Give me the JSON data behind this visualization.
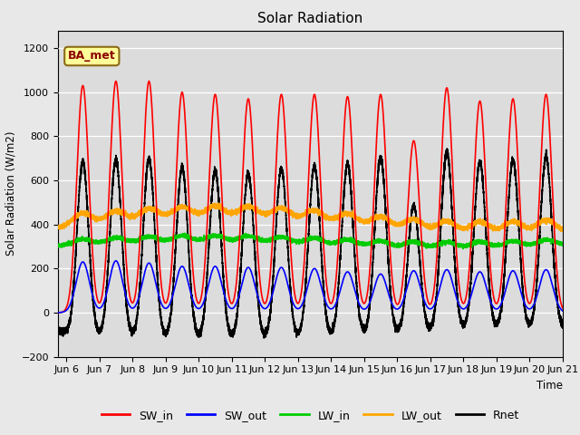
{
  "title": "Solar Radiation",
  "ylabel": "Solar Radiation (W/m2)",
  "xlabel": "Time",
  "xlim_days": [
    5.75,
    21.0
  ],
  "ylim": [
    -200,
    1280
  ],
  "yticks": [
    -200,
    0,
    200,
    400,
    600,
    800,
    1000,
    1200
  ],
  "xtick_labels": [
    "Jun 6",
    "Jun 7",
    "Jun 8",
    "Jun 9",
    "Jun 10",
    "Jun 11",
    "Jun 12",
    "Jun 13",
    "Jun 14",
    "Jun 15",
    "Jun 16",
    "Jun 17",
    "Jun 18",
    "Jun 19",
    "Jun 20",
    "Jun 21"
  ],
  "xtick_positions": [
    6,
    7,
    8,
    9,
    10,
    11,
    12,
    13,
    14,
    15,
    16,
    17,
    18,
    19,
    20,
    21
  ],
  "annotation_text": "BA_met",
  "colors": {
    "SW_in": "#FF0000",
    "SW_out": "#0000FF",
    "LW_in": "#00CC00",
    "LW_out": "#FFA500",
    "Rnet": "#000000"
  },
  "background_color": "#DCDCDC",
  "grid_color": "#FFFFFF",
  "linewidth": 1.2,
  "figsize": [
    6.4,
    4.8
  ],
  "dpi": 100,
  "SW_in_peaks": [
    1030,
    1050,
    1050,
    1000,
    990,
    970,
    990,
    990,
    980,
    990,
    780,
    1020,
    960,
    970,
    990
  ],
  "SW_out_peaks": [
    230,
    235,
    225,
    210,
    210,
    205,
    205,
    200,
    185,
    175,
    190,
    195,
    185,
    190,
    195
  ],
  "LW_in_base": 320,
  "LW_out_base": 390,
  "Rnet_night": -100
}
